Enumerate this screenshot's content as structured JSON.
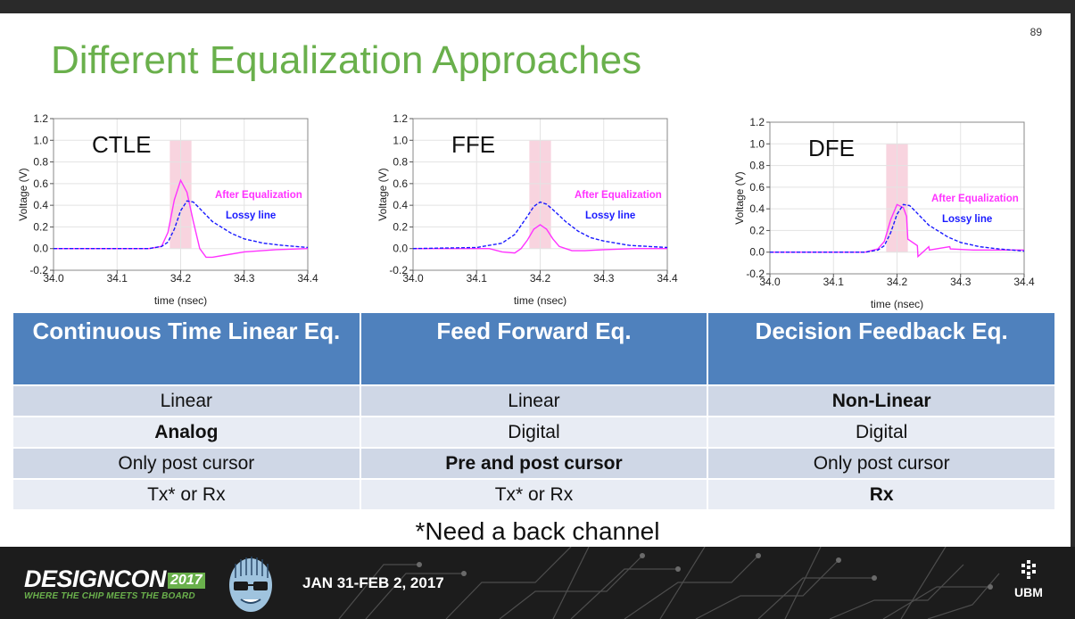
{
  "slide": {
    "page_number": "89",
    "title": "Different Equalization Approaches",
    "footnote": "*Need a back channel"
  },
  "footer": {
    "brand": "DESIGNCON",
    "year": "2017",
    "tagline": "WHERE THE CHIP MEETS THE BOARD",
    "dates": "JAN 31-FEB 2, 2017",
    "sponsor": "UBM"
  },
  "colors": {
    "title": "#6ab04c",
    "header_bg": "#4f81bd",
    "after_eq": "#ff33ff",
    "lossy": "#1a1aff"
  },
  "table": {
    "headers": [
      "Continuous Time Linear Eq.",
      "Feed Forward Eq.",
      "Decision Feedback Eq."
    ],
    "rows": [
      [
        "Linear",
        "Linear",
        "Non-Linear"
      ],
      [
        "Analog",
        "Digital",
        "Digital"
      ],
      [
        "Only post cursor",
        "Pre and post cursor",
        "Only post cursor"
      ],
      [
        "Tx* or Rx",
        "Tx* or Rx",
        "Rx"
      ]
    ]
  },
  "chart_data": [
    {
      "type": "line",
      "label": "CTLE",
      "xlabel": "time (nsec)",
      "ylabel": "Voltage (V)",
      "xlim": [
        34.0,
        34.4
      ],
      "ylim": [
        -0.2,
        1.2
      ],
      "xticks": [
        "34.0",
        "34.1",
        "34.2",
        "34.3",
        "34.4"
      ],
      "yticks": [
        "-0.2",
        "0.0",
        "0.2",
        "0.4",
        "0.6",
        "0.8",
        "1.0",
        "1.2"
      ],
      "highlight": [
        34.183,
        34.217
      ],
      "annotations": [
        "After Equalization",
        "Lossy line"
      ],
      "series": [
        {
          "name": "After Equalization",
          "color": "#ff33ff",
          "x": [
            34.0,
            34.1,
            34.15,
            34.17,
            34.18,
            34.19,
            34.2,
            34.21,
            34.22,
            34.23,
            34.24,
            34.25,
            34.27,
            34.3,
            34.35,
            34.4
          ],
          "y": [
            0.0,
            0.0,
            0.0,
            0.02,
            0.15,
            0.45,
            0.63,
            0.52,
            0.25,
            0.0,
            -0.08,
            -0.08,
            -0.06,
            -0.03,
            -0.01,
            0.0
          ]
        },
        {
          "name": "Lossy line",
          "color": "#1a1aff",
          "dashed": true,
          "x": [
            34.0,
            34.15,
            34.17,
            34.18,
            34.19,
            34.2,
            34.21,
            34.22,
            34.23,
            34.25,
            34.28,
            34.3,
            34.33,
            34.36,
            34.4
          ],
          "y": [
            0.0,
            0.0,
            0.02,
            0.06,
            0.18,
            0.35,
            0.44,
            0.43,
            0.37,
            0.25,
            0.14,
            0.09,
            0.05,
            0.03,
            0.01
          ]
        }
      ]
    },
    {
      "type": "line",
      "label": "FFE",
      "xlabel": "time (nsec)",
      "ylabel": "Voltage (V)",
      "xlim": [
        34.0,
        34.4
      ],
      "ylim": [
        -0.2,
        1.2
      ],
      "xticks": [
        "34.0",
        "34.1",
        "34.2",
        "34.3",
        "34.4"
      ],
      "yticks": [
        "-0.2",
        "0.0",
        "0.2",
        "0.4",
        "0.6",
        "0.8",
        "1.0",
        "1.2"
      ],
      "highlight": [
        34.183,
        34.217
      ],
      "annotations": [
        "After Equalization",
        "Lossy line"
      ],
      "series": [
        {
          "name": "After Equalization",
          "color": "#ff33ff",
          "x": [
            34.0,
            34.12,
            34.14,
            34.16,
            34.17,
            34.18,
            34.19,
            34.2,
            34.21,
            34.22,
            34.23,
            34.25,
            34.27,
            34.3,
            34.35,
            34.4
          ],
          "y": [
            0.0,
            0.0,
            -0.03,
            -0.04,
            0.0,
            0.08,
            0.18,
            0.22,
            0.18,
            0.09,
            0.02,
            -0.02,
            -0.02,
            -0.01,
            0.0,
            0.0
          ]
        },
        {
          "name": "Lossy line",
          "color": "#1a1aff",
          "dashed": true,
          "x": [
            34.0,
            34.1,
            34.14,
            34.16,
            34.18,
            34.19,
            34.2,
            34.21,
            34.22,
            34.24,
            34.26,
            34.28,
            34.3,
            34.34,
            34.4
          ],
          "y": [
            0.0,
            0.01,
            0.05,
            0.13,
            0.3,
            0.39,
            0.43,
            0.41,
            0.36,
            0.25,
            0.16,
            0.1,
            0.07,
            0.03,
            0.01
          ]
        }
      ]
    },
    {
      "type": "line",
      "label": "DFE",
      "xlabel": "time (nsec)",
      "ylabel": "Voltage (V)",
      "xlim": [
        34.0,
        34.4
      ],
      "ylim": [
        -0.2,
        1.2
      ],
      "xticks": [
        "34.0",
        "34.1",
        "34.2",
        "34.3",
        "34.4"
      ],
      "yticks": [
        "-0.2",
        "0.0",
        "0.2",
        "0.4",
        "0.6",
        "0.8",
        "1.0",
        "1.2"
      ],
      "highlight": [
        34.183,
        34.217
      ],
      "annotations": [
        "After Equalization",
        "Lossy line"
      ],
      "series": [
        {
          "name": "After Equalization",
          "color": "#ff33ff",
          "x": [
            34.0,
            34.15,
            34.17,
            34.18,
            34.19,
            34.2,
            34.21,
            34.215,
            34.217,
            34.232,
            34.233,
            34.25,
            34.251,
            34.283,
            34.284,
            34.32,
            34.36,
            34.4
          ],
          "y": [
            0.0,
            0.0,
            0.03,
            0.1,
            0.3,
            0.44,
            0.41,
            0.33,
            0.12,
            0.06,
            -0.04,
            0.05,
            0.02,
            0.05,
            0.03,
            0.02,
            0.02,
            0.02
          ]
        },
        {
          "name": "Lossy line",
          "color": "#1a1aff",
          "dashed": true,
          "x": [
            34.0,
            34.15,
            34.17,
            34.18,
            34.19,
            34.2,
            34.21,
            34.22,
            34.23,
            34.25,
            34.28,
            34.3,
            34.33,
            34.36,
            34.4
          ],
          "y": [
            0.0,
            0.0,
            0.02,
            0.06,
            0.18,
            0.35,
            0.44,
            0.43,
            0.37,
            0.25,
            0.14,
            0.09,
            0.05,
            0.03,
            0.01
          ]
        }
      ]
    }
  ]
}
